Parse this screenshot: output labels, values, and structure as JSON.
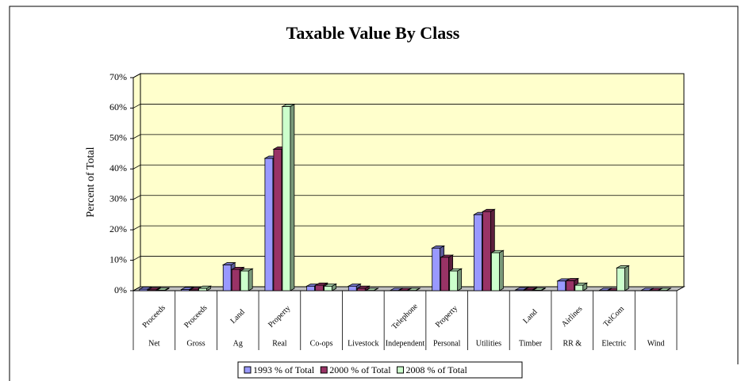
{
  "chart_data": {
    "type": "bar3d",
    "title": "Taxable Value By Class",
    "y_label": "Percent of Total",
    "categories": [
      [
        "Proceeds",
        "Net"
      ],
      [
        "Proceeds",
        "Gross"
      ],
      [
        "Land",
        "Ag"
      ],
      [
        "Property",
        "Real"
      ],
      [
        "Co-ops"
      ],
      [
        "Livestock"
      ],
      [
        "Telephone",
        "Independent"
      ],
      [
        "Property",
        "Personal"
      ],
      [
        "Utilities"
      ],
      [
        "Land",
        "Timber"
      ],
      [
        "Airlines",
        "RR &"
      ],
      [
        "TelCom",
        "Electric"
      ],
      [
        "Wind"
      ]
    ],
    "series": [
      {
        "name": "1993 % of Total",
        "color": "#9999ff",
        "values": [
          0.5,
          0.4,
          8.5,
          43.5,
          1.5,
          1.5,
          0.1,
          14,
          25,
          0.3,
          3.2,
          0.1,
          0.1
        ]
      },
      {
        "name": "2000 % of Total",
        "color": "#993366",
        "values": [
          0.3,
          0.3,
          7,
          46.5,
          1.8,
          0.8,
          0.1,
          11,
          26,
          0.3,
          3.3,
          0.1,
          0.1
        ]
      },
      {
        "name": "2008 % of Total",
        "color": "#ccffcc",
        "values": [
          0.2,
          0.8,
          6.5,
          60.5,
          1.5,
          0.1,
          0.1,
          6.5,
          12.5,
          0.2,
          1.8,
          7.5,
          0.1
        ]
      }
    ],
    "ylim": [
      0,
      70
    ],
    "yticks": [
      {
        "value": 0,
        "label": "0%"
      },
      {
        "value": 10,
        "label": "10%"
      },
      {
        "value": 20,
        "label": "20%"
      },
      {
        "value": 30,
        "label": "30%"
      },
      {
        "value": 40,
        "label": "40%"
      },
      {
        "value": 50,
        "label": "50%"
      },
      {
        "value": 60,
        "label": "60%"
      },
      {
        "value": 70,
        "label": "70%"
      }
    ],
    "grid": true,
    "wall_color": "#ffffcc",
    "legend": "bottom"
  }
}
